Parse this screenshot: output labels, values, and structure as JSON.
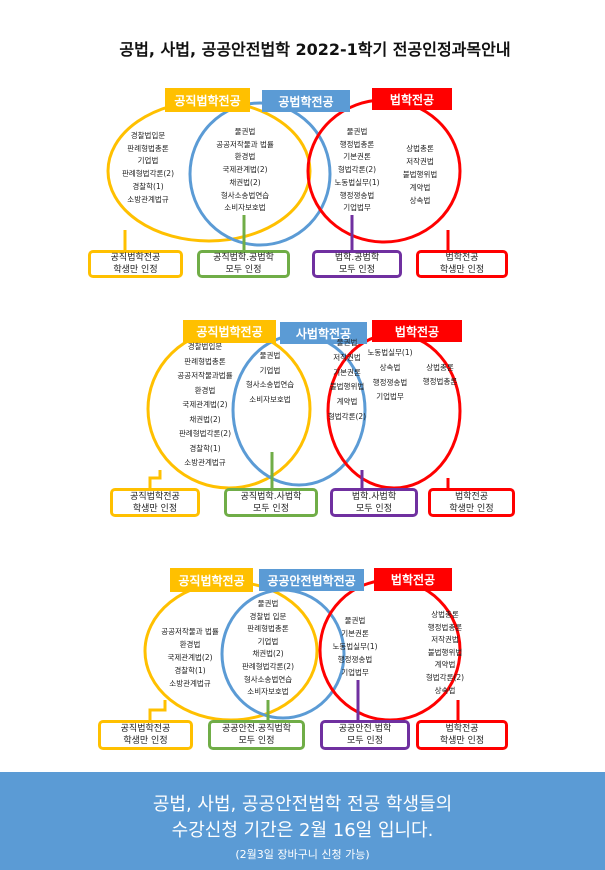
{
  "title": "공법, 사법, 공공안전법학 2022-1학기 전공인정과목안내",
  "colors": {
    "yellow": "#FFC000",
    "blue": "#5B9BD5",
    "red": "#FF0000",
    "green": "#70AD47",
    "purple": "#7030A0"
  },
  "diagrams": [
    {
      "labels": [
        "공직법학전공",
        "공법학전공",
        "법학전공"
      ],
      "columns": [
        [
          "경찰법입문",
          "판례형법총론",
          "기업법",
          "판례형법각론(2)",
          "경찰학(1)",
          "소방관계법규"
        ],
        [
          "물권법",
          "공공저작물과 법률",
          "환경법",
          "국제관계법(2)",
          "채권법(2)",
          "형사소송법연습",
          "소비자보호법"
        ],
        [
          "물권법",
          "행정법총론",
          "기본권론",
          "형법각론(2)",
          "노동법실무(1)",
          "행정쟁송법",
          "기업법무"
        ],
        [
          "상법총론",
          "저작권법",
          "불법행위법",
          "계약법",
          "상속법"
        ]
      ],
      "boxes": [
        [
          "공직법학전공",
          "학생만 인정"
        ],
        [
          "공직법학.공법학",
          "모두 인정"
        ],
        [
          "법학.공법학",
          "모두 인정"
        ],
        [
          "법학전공",
          "학생만 인정"
        ]
      ]
    },
    {
      "labels": [
        "공직법학전공",
        "사법학전공",
        "법학전공"
      ],
      "columns": [
        [
          "경찰법입문",
          "판례형법총론",
          "공공저작물과법률",
          "환경법",
          "국제관계법(2)",
          "채권법(2)",
          "판례형법각론(2)",
          "경찰학(1)",
          "소방관계법규"
        ],
        [
          "물권법",
          "기업법",
          "형사소송법연습",
          "소비자보호법"
        ],
        [
          "물권법",
          "저작권법",
          "기본권론",
          "불법행위법",
          "계약법",
          "형법각론(2)"
        ],
        [
          "노동법실무(1)",
          "상속법",
          "행정쟁송법",
          "기업법무"
        ],
        [
          "상법총론",
          "행정법총론"
        ]
      ],
      "boxes": [
        [
          "공직법학전공",
          "학생만 인정"
        ],
        [
          "공직법학.사법학",
          "모두 인정"
        ],
        [
          "법학.사법학",
          "모두 인정"
        ],
        [
          "법학전공",
          "학생만 인정"
        ]
      ]
    },
    {
      "labels": [
        "공직법학전공",
        "공공안전법학전공",
        "법학전공"
      ],
      "columns": [
        [
          "공공저작물과 법률",
          "환경법",
          "국제관계법(2)",
          "경찰학(1)",
          "소방관계법규"
        ],
        [
          "물권법",
          "경찰법 입문",
          "판례형법총론",
          "기업법",
          "채권법(2)",
          "판례형법각론(2)",
          "형사소송법연습",
          "소비자보호법"
        ],
        [
          "물권법",
          "기본권론",
          "노동법실무(1)",
          "행정쟁송법",
          "기업법무"
        ],
        [
          "상법총론",
          "행정법총론",
          "저작권법",
          "불법행위법",
          "계약법",
          "형법각론(2)",
          "상속법"
        ]
      ],
      "boxes": [
        [
          "공직법학전공",
          "학생만 인정"
        ],
        [
          "공공안전.공직법학",
          "모두 인정"
        ],
        [
          "공공안전.법학",
          "모두 인정"
        ],
        [
          "법학전공",
          "학생만 인정"
        ]
      ]
    }
  ],
  "footer": {
    "line1": "공법, 사법, 공공안전법학 전공 학생들의",
    "line2": "수강신청 기간은 2월 16일 입니다.",
    "line3": "(2월3일 장바구니 신청 가능)"
  }
}
